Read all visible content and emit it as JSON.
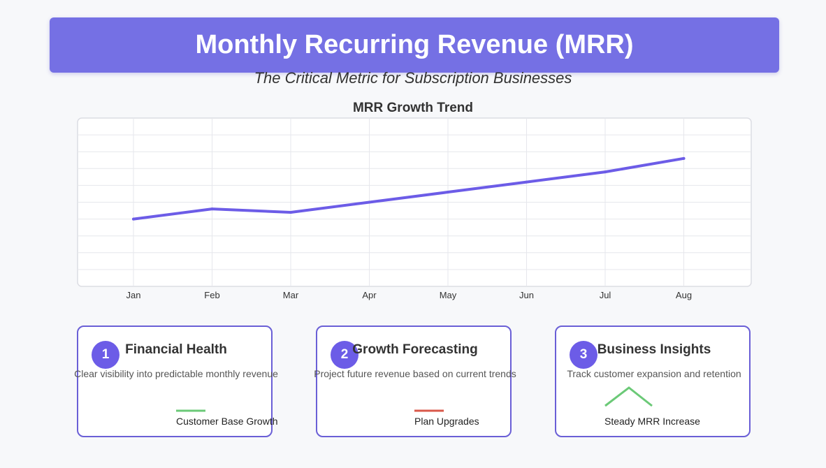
{
  "header": {
    "title": "Monthly Recurring Revenue (MRR)",
    "subtitle": "The Critical Metric for Subscription Businesses"
  },
  "colors": {
    "accent": "#7570e4",
    "line": "#6c5ce7",
    "green": "#6bc977",
    "red": "#d9584a"
  },
  "chart_data": {
    "type": "line",
    "title": "MRR Growth Trend",
    "categories": [
      "Jan",
      "Feb",
      "Mar",
      "Apr",
      "May",
      "Jun",
      "Jul",
      "Aug"
    ],
    "series": [
      {
        "values": [
          20,
          26,
          24,
          30,
          36,
          42,
          48,
          56
        ]
      }
    ],
    "ylim": [
      -20,
      80
    ],
    "y_grid_step": 10,
    "y_tick_labels": false,
    "grid": true
  },
  "cards": [
    {
      "number": "1",
      "title": "Financial Health",
      "description": "Clear visibility into predictable monthly revenue",
      "label": "Customer Base Growth",
      "icon": "green-line-icon"
    },
    {
      "number": "2",
      "title": "Growth Forecasting",
      "description": "Project future revenue based on current trends",
      "label": "Plan Upgrades",
      "icon": "red-line-icon"
    },
    {
      "number": "3",
      "title": "Business Insights",
      "description": "Track customer expansion and retention",
      "label": "Steady MRR Increase",
      "icon": "peak-line-icon"
    }
  ]
}
